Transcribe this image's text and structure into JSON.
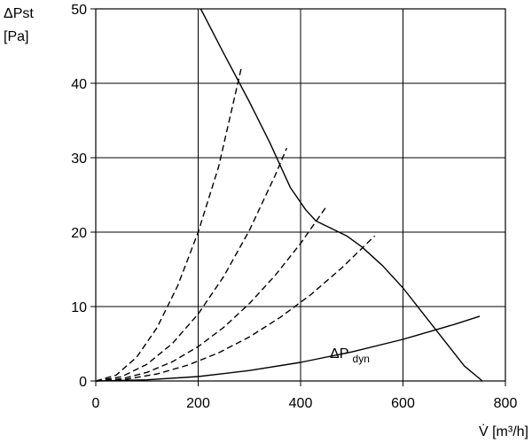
{
  "chart_data": {
    "type": "line",
    "title": "",
    "xlabel": "V̇ [m³/h]",
    "ylabel_line1": "ΔPst",
    "ylabel_line2": "[Pa]",
    "ylabel": "ΔPst [Pa]",
    "xlim": [
      0,
      800
    ],
    "ylim": [
      0,
      50
    ],
    "xticks": [
      0,
      200,
      400,
      600,
      800
    ],
    "yticks": [
      0,
      10,
      20,
      30,
      40,
      50
    ],
    "grid": true,
    "series": [
      {
        "style": "solid",
        "role": "fan-curve",
        "x": [
          205,
          250,
          300,
          340,
          360,
          380,
          410,
          430,
          460,
          490,
          520,
          560,
          600,
          640,
          680,
          720,
          755
        ],
        "y": [
          50,
          44,
          37.5,
          32,
          29,
          26,
          23,
          21.5,
          20.5,
          19.5,
          18,
          15.5,
          12.5,
          9,
          5.5,
          2,
          0
        ]
      },
      {
        "style": "solid",
        "role": "dynamic-pressure",
        "name": "ΔPdyn",
        "label_main": "ΔP",
        "label_sub": "dyn",
        "x": [
          0,
          100,
          200,
          300,
          400,
          500,
          600,
          700,
          750
        ],
        "y": [
          0,
          0.15,
          0.6,
          1.4,
          2.5,
          3.9,
          5.6,
          7.6,
          8.7
        ]
      },
      {
        "style": "dashed",
        "role": "system-curve",
        "x": [
          0,
          40,
          80,
          120,
          160,
          200,
          240,
          285
        ],
        "y": [
          0,
          0.8,
          3.2,
          7.2,
          12.8,
          20,
          28.8,
          42.3
        ]
      },
      {
        "style": "dashed",
        "role": "system-curve",
        "x": [
          0,
          50,
          100,
          150,
          200,
          250,
          300,
          350,
          373
        ],
        "y": [
          0,
          0.56,
          2.25,
          5.06,
          9,
          14.06,
          20.25,
          27.56,
          31.3
        ]
      },
      {
        "style": "dashed",
        "role": "system-curve",
        "x": [
          0,
          50,
          100,
          150,
          200,
          250,
          300,
          350,
          400,
          450
        ],
        "y": [
          0,
          0.29,
          1.15,
          2.6,
          4.62,
          7.22,
          10.4,
          14.15,
          18.48,
          23.4
        ]
      },
      {
        "style": "dashed",
        "role": "system-curve",
        "x": [
          0,
          60,
          120,
          180,
          240,
          300,
          360,
          420,
          480,
          545
        ],
        "y": [
          0,
          0.24,
          0.95,
          2.13,
          3.79,
          5.92,
          8.53,
          11.61,
          15.17,
          19.5
        ]
      }
    ]
  }
}
